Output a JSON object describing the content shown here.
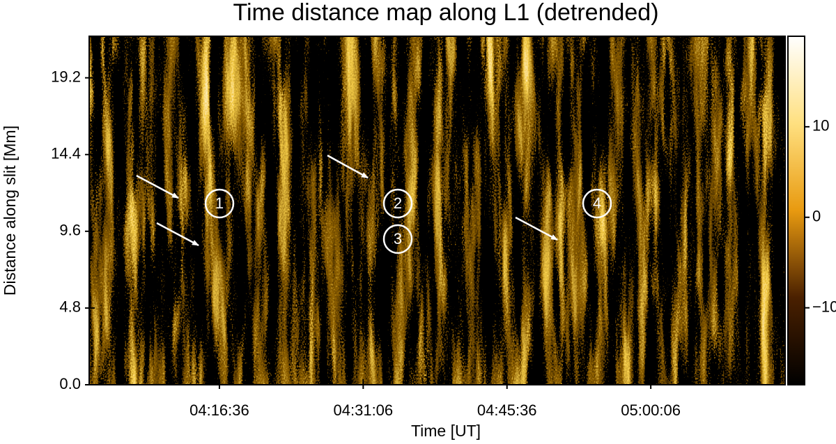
{
  "chart_data": {
    "type": "heatmap",
    "title": "Time distance map along L1 (detrended)",
    "x_label": "Time [UT]",
    "y_label": "Distance along slit [Mm]",
    "xlim": [
      "04:03:28",
      "05:13:39"
    ],
    "xticks": [
      "04:16:36",
      "04:31:06",
      "04:45:36",
      "05:00:06"
    ],
    "ylim": [
      0,
      21.8
    ],
    "yticks": [
      {
        "value": 0,
        "label": "0.0"
      },
      4.8,
      9.6,
      14.4,
      19.2
    ],
    "colorbar": {
      "lim": [
        -18.5,
        20
      ],
      "ticks": [
        {
          "value": -10,
          "label": "−10"
        },
        0,
        10
      ]
    },
    "colormap": [
      "#000000",
      "#4a2000",
      "#e89a10",
      "#ffe080",
      "#ffffff"
    ],
    "annotations": [
      "1",
      "2",
      "3",
      "4"
    ]
  }
}
